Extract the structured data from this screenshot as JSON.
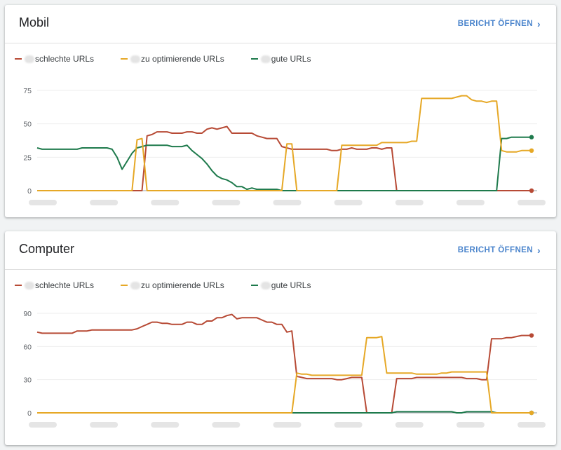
{
  "cards": [
    {
      "title": "Mobil",
      "report_label": "BERICHT ÖFFNEN",
      "legend": [
        "schlechte URLs",
        "zu optimierende URLs",
        "gute URLs"
      ]
    },
    {
      "title": "Computer",
      "report_label": "BERICHT ÖFFNEN",
      "legend": [
        "schlechte URLs",
        "zu optimierende URLs",
        "gute URLs"
      ]
    }
  ],
  "colors": {
    "bad": "#b74a35",
    "improve": "#e6a826",
    "good": "#1e7a4c",
    "grid": "#eeeeee",
    "axis": "#9aa0a6",
    "link": "#4a84cc"
  },
  "icons": {
    "report_link": "chevron-right-icon"
  },
  "chart_data": [
    {
      "type": "line",
      "ylim": [
        0,
        80
      ],
      "yticks": [
        0,
        25,
        50,
        75
      ],
      "grid": true,
      "legend_placement": "top-left",
      "series": [
        {
          "name": "schlechte URLs",
          "color": "#b74a35",
          "values": [
            0,
            0,
            0,
            0,
            0,
            0,
            0,
            0,
            0,
            0,
            0,
            0,
            0,
            0,
            0,
            0,
            0,
            0,
            0,
            0,
            0,
            0,
            41,
            42,
            44,
            44,
            44,
            43,
            43,
            43,
            44,
            44,
            43,
            43,
            46,
            47,
            46,
            47,
            48,
            43,
            43,
            43,
            43,
            43,
            41,
            40,
            39,
            39,
            39,
            33,
            32,
            31,
            31,
            31,
            31,
            31,
            31,
            31,
            31,
            30,
            30,
            31,
            31,
            32,
            31,
            31,
            31,
            32,
            32,
            31,
            32,
            32,
            0,
            0,
            0,
            0,
            0,
            0,
            0,
            0,
            0,
            0,
            0,
            0,
            0,
            0,
            0,
            0,
            0,
            0,
            0,
            0,
            0,
            0,
            0,
            0,
            0,
            0,
            0,
            0
          ]
        },
        {
          "name": "zu optimierende URLs",
          "color": "#e6a826",
          "values": [
            0,
            0,
            0,
            0,
            0,
            0,
            0,
            0,
            0,
            0,
            0,
            0,
            0,
            0,
            0,
            0,
            0,
            0,
            0,
            0,
            38,
            39,
            0,
            0,
            0,
            0,
            0,
            0,
            0,
            0,
            0,
            0,
            0,
            0,
            0,
            0,
            0,
            0,
            0,
            0,
            0,
            0,
            0,
            0,
            0,
            0,
            0,
            0,
            0,
            0,
            35,
            35,
            0,
            0,
            0,
            0,
            0,
            0,
            0,
            0,
            0,
            34,
            34,
            34,
            34,
            34,
            34,
            34,
            34,
            36,
            36,
            36,
            36,
            36,
            36,
            37,
            37,
            69,
            69,
            69,
            69,
            69,
            69,
            69,
            70,
            71,
            71,
            68,
            67,
            67,
            66,
            67,
            67,
            30,
            29,
            29,
            29,
            30,
            30,
            30
          ]
        },
        {
          "name": "gute URLs",
          "color": "#1e7a4c",
          "values": [
            32,
            31,
            31,
            31,
            31,
            31,
            31,
            31,
            31,
            32,
            32,
            32,
            32,
            32,
            32,
            31,
            25,
            16,
            22,
            28,
            32,
            33,
            34,
            34,
            34,
            34,
            34,
            33,
            33,
            33,
            34,
            30,
            27,
            24,
            20,
            15,
            11,
            9,
            8,
            6,
            3,
            3,
            1,
            2,
            1,
            1,
            1,
            1,
            1,
            0,
            0,
            0,
            0,
            0,
            0,
            0,
            0,
            0,
            0,
            0,
            0,
            0,
            0,
            0,
            0,
            0,
            0,
            0,
            0,
            0,
            0,
            0,
            0,
            0,
            0,
            0,
            0,
            0,
            0,
            0,
            0,
            0,
            0,
            0,
            0,
            0,
            0,
            0,
            0,
            0,
            0,
            0,
            0,
            39,
            39,
            40,
            40,
            40,
            40,
            40
          ]
        }
      ]
    },
    {
      "type": "line",
      "ylim": [
        0,
        100
      ],
      "yticks": [
        0,
        30,
        60,
        90
      ],
      "grid": true,
      "legend_placement": "top-left",
      "series": [
        {
          "name": "schlechte URLs",
          "color": "#b74a35",
          "values": [
            73,
            72,
            72,
            72,
            72,
            72,
            72,
            72,
            74,
            74,
            74,
            75,
            75,
            75,
            75,
            75,
            75,
            75,
            75,
            75,
            76,
            78,
            80,
            82,
            82,
            81,
            81,
            80,
            80,
            80,
            82,
            82,
            80,
            80,
            83,
            83,
            86,
            86,
            88,
            89,
            85,
            86,
            86,
            86,
            86,
            84,
            82,
            82,
            80,
            80,
            73,
            74,
            33,
            32,
            31,
            31,
            31,
            31,
            31,
            31,
            30,
            30,
            31,
            32,
            32,
            32,
            0,
            0,
            0,
            0,
            0,
            0,
            31,
            31,
            31,
            31,
            32,
            32,
            32,
            32,
            32,
            32,
            32,
            32,
            32,
            32,
            31,
            31,
            31,
            30,
            30,
            67,
            67,
            67,
            68,
            68,
            69,
            70,
            70,
            70
          ]
        },
        {
          "name": "zu optimierende URLs",
          "color": "#e6a826",
          "values": [
            0,
            0,
            0,
            0,
            0,
            0,
            0,
            0,
            0,
            0,
            0,
            0,
            0,
            0,
            0,
            0,
            0,
            0,
            0,
            0,
            0,
            0,
            0,
            0,
            0,
            0,
            0,
            0,
            0,
            0,
            0,
            0,
            0,
            0,
            0,
            0,
            0,
            0,
            0,
            0,
            0,
            0,
            0,
            0,
            0,
            0,
            0,
            0,
            0,
            0,
            0,
            0,
            36,
            35,
            35,
            34,
            34,
            34,
            34,
            34,
            34,
            34,
            34,
            34,
            34,
            34,
            68,
            68,
            68,
            69,
            36,
            36,
            36,
            36,
            36,
            36,
            35,
            35,
            35,
            35,
            35,
            36,
            36,
            37,
            37,
            37,
            37,
            37,
            37,
            37,
            37,
            0,
            0,
            0,
            0,
            0,
            0,
            0,
            0,
            0
          ]
        },
        {
          "name": "gute URLs",
          "color": "#1e7a4c",
          "values": [
            0,
            0,
            0,
            0,
            0,
            0,
            0,
            0,
            0,
            0,
            0,
            0,
            0,
            0,
            0,
            0,
            0,
            0,
            0,
            0,
            0,
            0,
            0,
            0,
            0,
            0,
            0,
            0,
            0,
            0,
            0,
            0,
            0,
            0,
            0,
            0,
            0,
            0,
            0,
            0,
            0,
            0,
            0,
            0,
            0,
            0,
            0,
            0,
            0,
            0,
            0,
            0,
            0,
            0,
            0,
            0,
            0,
            0,
            0,
            0,
            0,
            0,
            0,
            0,
            0,
            0,
            0,
            0,
            0,
            0,
            0,
            0,
            1,
            1,
            1,
            1,
            1,
            1,
            1,
            1,
            1,
            1,
            1,
            1,
            0,
            0,
            1,
            1,
            1,
            1,
            1,
            1,
            0,
            0,
            0,
            0,
            0,
            0,
            0,
            0
          ]
        }
      ]
    }
  ]
}
